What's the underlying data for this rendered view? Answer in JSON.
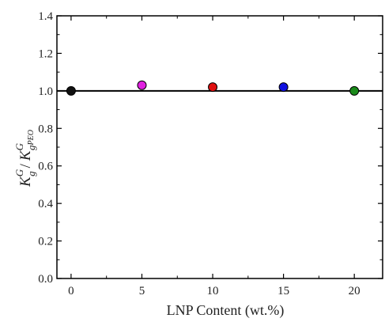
{
  "chart_data": {
    "type": "scatter",
    "xlabel": "LNP Content (wt.%)",
    "ylabel": {
      "num_base": "K",
      "num_sub": "g",
      "num_sup": "G",
      "slash": "/",
      "den_base": "K",
      "den_sub": "g",
      "den_subsub": "PEO",
      "den_sup": "G"
    },
    "xlim": [
      -1,
      22
    ],
    "ylim": [
      0,
      1.4
    ],
    "x_ticks": [
      0,
      5,
      10,
      15,
      20
    ],
    "x_tick_labels": [
      "0",
      "5",
      "10",
      "15",
      "20"
    ],
    "y_ticks": [
      0.0,
      0.2,
      0.4,
      0.6,
      0.8,
      1.0,
      1.2,
      1.4
    ],
    "y_tick_labels": [
      "0.0",
      "0.2",
      "0.4",
      "0.6",
      "0.8",
      "1.0",
      "1.2",
      "1.4"
    ],
    "reference_line": {
      "y": 1.0,
      "color": "#000000"
    },
    "points": [
      {
        "x": 0,
        "y": 1.0,
        "color": "#111111"
      },
      {
        "x": 5,
        "y": 1.03,
        "color": "#e020e0"
      },
      {
        "x": 10,
        "y": 1.02,
        "color": "#e01010"
      },
      {
        "x": 15,
        "y": 1.02,
        "color": "#1010e0"
      },
      {
        "x": 20,
        "y": 1.0,
        "color": "#1a8a1a"
      }
    ],
    "grid": false,
    "legend": "none"
  }
}
